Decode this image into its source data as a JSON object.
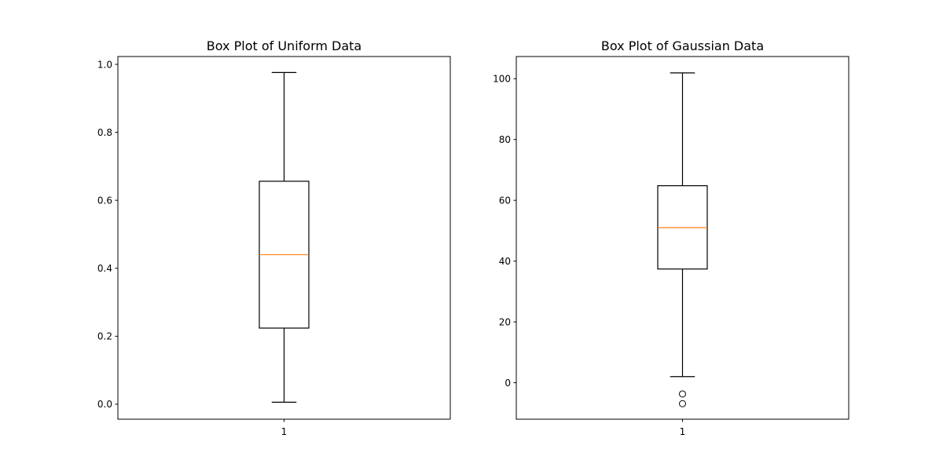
{
  "chart_data": [
    {
      "type": "box",
      "title": "Box Plot of Uniform Data",
      "xlabel": "",
      "ylabel": "",
      "categories": [
        "1"
      ],
      "ylim": [
        -0.044,
        1.023
      ],
      "yticks": [
        0.0,
        0.2,
        0.4,
        0.6,
        0.8,
        1.0
      ],
      "ytick_labels": [
        "0.0",
        "0.2",
        "0.4",
        "0.6",
        "0.8",
        "1.0"
      ],
      "boxes": [
        {
          "category": "1",
          "whisker_low": 0.006,
          "q1": 0.224,
          "median": 0.44,
          "q3": 0.656,
          "whisker_high": 0.976,
          "outliers": []
        }
      ],
      "grid": false
    },
    {
      "type": "box",
      "title": "Box Plot of Gaussian Data",
      "xlabel": "",
      "ylabel": "",
      "categories": [
        "1"
      ],
      "ylim": [
        -12.0,
        107.3
      ],
      "yticks": [
        0,
        20,
        40,
        60,
        80,
        100
      ],
      "ytick_labels": [
        "0",
        "20",
        "40",
        "60",
        "80",
        "100"
      ],
      "boxes": [
        {
          "category": "1",
          "whisker_low": 2.0,
          "q1": 37.4,
          "median": 51.0,
          "q3": 64.8,
          "whisker_high": 101.9,
          "outliers": [
            -3.7,
            -6.9
          ]
        }
      ],
      "grid": false
    }
  ],
  "colors": {
    "box": "#000000",
    "median": "#ff7f0e",
    "axes": "#000000",
    "background": "#ffffff"
  }
}
